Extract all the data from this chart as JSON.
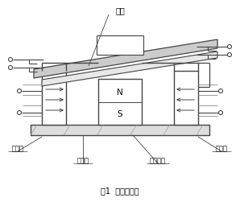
{
  "title": "图1  原理示意图",
  "label_衔铁": "衔铁",
  "label_左边柱": "左边柱",
  "label_右边柱": "右边柱",
  "label_磁轭板": "磁轭板",
  "label_永久磁铁": "永久磁铁",
  "label_N": "N",
  "label_S": "S",
  "line_color": "#444444",
  "gray_color": "#999999",
  "bg_color": "#ffffff",
  "figsize": [
    2.98,
    2.56
  ],
  "dpi": 100
}
